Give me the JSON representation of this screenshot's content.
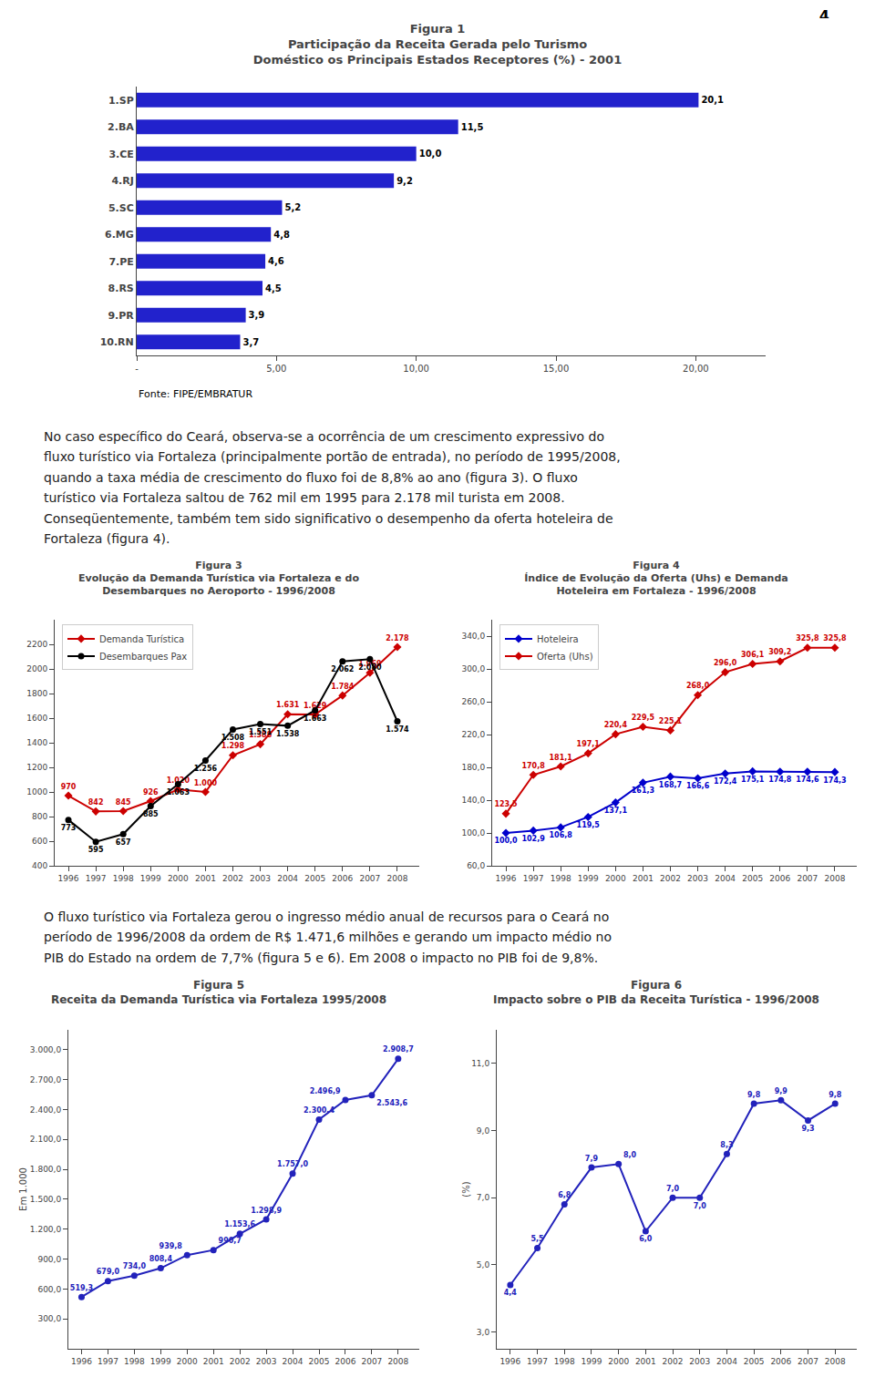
{
  "page_number": "4",
  "text_blocks": [
    "No caso específico do Ceará, observa-se a ocorrência de um crescimento expressivo do\nfluxo turístico via Fortaleza (principalmente portão de entrada), no período de 1995/2008,\nquando a taxa média de crescimento do fluxo foi de 8,8% ao ano (figura 3). O fluxo\nturístico via Fortaleza saltou de 762 mil em 1995 para 2.178 mil turista em 2008.\nConseqüentemente, também tem sido significativo o desempenho da oferta hoteleira de\nFortaleza (figura 4).",
    "O fluxo turístico via Fortaleza gerou o ingresso médio anual de recursos para o Ceará no\nperíodo de 1996/2008 da ordem de R$ 1.471,6 milhões e gerando um impacto médio no\nPIB do Estado na ordem de 7,7% (figura 5 e 6). Em 2008 o impacto no PIB foi de 9,8%."
  ],
  "chart_data": [
    {
      "type": "bar",
      "orientation": "horizontal",
      "title": "Figura 1\nParticipação da Receita Gerada pelo Turismo\nDoméstico os Principais Estados Receptores (%) - 2001",
      "categories": [
        "10.RN",
        "9.PR",
        "8.RS",
        "7.PE",
        "6.MG",
        "5.SC",
        "4.RJ",
        "3.CE",
        "2.BA",
        "1.SP"
      ],
      "values": [
        3.7,
        3.9,
        4.5,
        4.6,
        4.8,
        5.2,
        9.2,
        10.0,
        11.5,
        20.1
      ],
      "value_labels": [
        "3,7",
        "3,9",
        "4,5",
        "4,6",
        "4,8",
        "5,2",
        "9,2",
        "10,0",
        "11,5",
        "20,1"
      ],
      "data_labels": true,
      "color": "#2222CC",
      "xlim": [
        0,
        22.5
      ],
      "xticks": [
        {
          "value": 0,
          "label": "-"
        },
        {
          "value": 5,
          "label": "5,00"
        },
        {
          "value": 10,
          "label": "10,00"
        },
        {
          "value": 15,
          "label": "15,00"
        },
        {
          "value": 20,
          "label": "20,00"
        }
      ],
      "grid": false,
      "annotations": [
        "Fonte: FIPE/EMBRATUR"
      ]
    },
    {
      "type": "line",
      "title": "Figura 3\nEvolução da Demanda Turística via Fortaleza e do\nDesembarques no Aeroporto - 1996/2008",
      "x": [
        1996,
        1997,
        1998,
        1999,
        2000,
        2001,
        2002,
        2003,
        2004,
        2005,
        2006,
        2007,
        2008
      ],
      "xlim": [
        1995.5,
        2008.8
      ],
      "xticks": [
        1996,
        1997,
        1998,
        1999,
        2000,
        2001,
        2002,
        2003,
        2004,
        2005,
        2006,
        2007,
        2008
      ],
      "ylim": [
        400,
        2400
      ],
      "yticks": [
        400,
        600,
        800,
        1000,
        1200,
        1400,
        1600,
        1800,
        2000,
        2200
      ],
      "grid": false,
      "legend": "upper left",
      "data_labels": true,
      "series": [
        {
          "name": "Demanda Turística",
          "color": "#CC0000",
          "marker": "diamond",
          "values": [
            970,
            842,
            845,
            926,
            1020,
            1000,
            1298,
            1388,
            1631,
            1629,
            1784,
            1969,
            2178
          ],
          "value_labels": [
            "970",
            "842",
            "845",
            "926",
            "1.020",
            "1.000",
            "1.298",
            "1.388",
            "1.631",
            "1.629",
            "1.784",
            "1.969",
            "2.178"
          ]
        },
        {
          "name": "Desembarques Pax",
          "color": "#000000",
          "marker": "circle",
          "values": [
            773,
            595,
            657,
            885,
            1063,
            1256,
            1508,
            1551,
            1538,
            1663,
            2062,
            2080,
            1574
          ],
          "value_labels": [
            "773",
            "595",
            "657",
            "885",
            "1.063",
            "1.256",
            "1.508",
            "1.551",
            "1.538",
            "1.663",
            "2.062",
            "2.080",
            "1.574"
          ]
        }
      ]
    },
    {
      "type": "line",
      "title": "Figura 4\nÍndice de Evolução da Oferta (Uhs) e Demanda\nHoteleira em Fortaleza - 1996/2008",
      "x": [
        1996,
        1997,
        1998,
        1999,
        2000,
        2001,
        2002,
        2003,
        2004,
        2005,
        2006,
        2007,
        2008
      ],
      "xlim": [
        1995.5,
        2008.8
      ],
      "xticks": [
        1996,
        1997,
        1998,
        1999,
        2000,
        2001,
        2002,
        2003,
        2004,
        2005,
        2006,
        2007,
        2008
      ],
      "ylim": [
        60,
        360
      ],
      "yticks": [
        {
          "value": 60.0,
          "label": "60,0"
        },
        {
          "value": 100.0,
          "label": "100,0"
        },
        {
          "value": 140.0,
          "label": "140,0"
        },
        {
          "value": 180.0,
          "label": "180,0"
        },
        {
          "value": 220.0,
          "label": "220,0"
        },
        {
          "value": 260.0,
          "label": "260,0"
        },
        {
          "value": 300.0,
          "label": "300,0"
        },
        {
          "value": 340.0,
          "label": "340,0"
        }
      ],
      "grid": false,
      "legend": "upper left",
      "data_labels": true,
      "series": [
        {
          "name": "Hoteleira",
          "color": "#0000CC",
          "marker": "diamond",
          "values": [
            100.0,
            102.9,
            106.8,
            119.5,
            137.1,
            161.3,
            168.7,
            166.6,
            172.4,
            175.1,
            174.8,
            174.6,
            174.3
          ],
          "value_labels": [
            "100,0",
            "102,9",
            "106,8",
            "119,5",
            "137,1",
            "161,3",
            "168,7",
            "166,6",
            "172,4",
            "175,1",
            "174,8",
            "174,6",
            "174,3"
          ]
        },
        {
          "name": "Oferta (Uhs)",
          "color": "#CC0000",
          "marker": "diamond",
          "values": [
            123.5,
            170.8,
            181.1,
            197.1,
            220.4,
            229.5,
            225.1,
            268.0,
            296.0,
            306.1,
            309.2,
            325.8,
            325.8
          ],
          "value_labels": [
            "123,5",
            "170,8",
            "181,1",
            "197,1",
            "220,4",
            "229,5",
            "225,1",
            "268,0",
            "296,0",
            "306,1",
            "309,2",
            "325,8",
            "325,8"
          ]
        }
      ]
    },
    {
      "type": "line",
      "title": "Figura 5\nReceita da Demanda Turística via Fortaleza 1995/2008",
      "y_label": "Em 1.000",
      "x": [
        1996,
        1997,
        1998,
        1999,
        2000,
        2001,
        2002,
        2003,
        2004,
        2005,
        2006,
        2007,
        2008
      ],
      "xlim": [
        1995.5,
        2008.8
      ],
      "xticks": [
        1996,
        1997,
        1998,
        1999,
        2000,
        2001,
        2002,
        2003,
        2004,
        2005,
        2006,
        2007,
        2008
      ],
      "ylim": [
        0,
        3200
      ],
      "yticks": [
        {
          "value": 300.0,
          "label": "300,0"
        },
        {
          "value": 600.0,
          "label": "600,0"
        },
        {
          "value": 900.0,
          "label": "900,0"
        },
        {
          "value": 1200.0,
          "label": "1.200,0"
        },
        {
          "value": 1500.0,
          "label": "1.500,0"
        },
        {
          "value": 1800.0,
          "label": "1.800,0"
        },
        {
          "value": 2100.0,
          "label": "2.100,0"
        },
        {
          "value": 2400.0,
          "label": "2.400,0"
        },
        {
          "value": 2700.0,
          "label": "2.700,0"
        },
        {
          "value": 3000.0,
          "label": "3.000,0"
        }
      ],
      "grid": false,
      "data_labels": true,
      "series": [
        {
          "color": "#2222BB",
          "marker": "circle",
          "values": [
            519.3,
            679.0,
            734.0,
            808.4,
            939.8,
            990.7,
            1153.6,
            1298.9,
            1757.0,
            2300.4,
            2496.9,
            2543.6,
            2908.7
          ],
          "value_labels": [
            "519,3",
            "679,0",
            "734,0",
            "808,4",
            "939,8",
            "990,7",
            "1.153,6",
            "1.298,9",
            "1.757,0",
            "2.300,4",
            "2.496,9",
            "2.543,6",
            "2.908,7"
          ]
        }
      ]
    },
    {
      "type": "line",
      "title": "Figura 6\nImpacto sobre o PIB da Receita Turística - 1996/2008",
      "y_label": "(%)",
      "x": [
        1996,
        1997,
        1998,
        1999,
        2000,
        2001,
        2002,
        2003,
        2004,
        2005,
        2006,
        2007,
        2008
      ],
      "xlim": [
        1995.5,
        2008.8
      ],
      "xticks": [
        1996,
        1997,
        1998,
        1999,
        2000,
        2001,
        2002,
        2003,
        2004,
        2005,
        2006,
        2007,
        2008
      ],
      "ylim": [
        2.5,
        12.0
      ],
      "yticks": [
        {
          "value": 3.0,
          "label": "3,0"
        },
        {
          "value": 5.0,
          "label": "5,0"
        },
        {
          "value": 7.0,
          "label": "7,0"
        },
        {
          "value": 9.0,
          "label": "9,0"
        },
        {
          "value": 11.0,
          "label": "11,0"
        }
      ],
      "grid": false,
      "data_labels": true,
      "series": [
        {
          "color": "#2222BB",
          "marker": "circle",
          "values": [
            4.4,
            5.5,
            6.8,
            7.9,
            8.0,
            6.0,
            7.0,
            7.0,
            8.3,
            9.8,
            9.9,
            9.3,
            9.8
          ],
          "value_labels": [
            "4,4",
            "5,5",
            "6,8",
            "7,9",
            "8,0",
            "6,0",
            "7,0",
            "7,0",
            "8,3",
            "9,8",
            "9,9",
            "9,3",
            "9,8"
          ]
        }
      ]
    }
  ]
}
